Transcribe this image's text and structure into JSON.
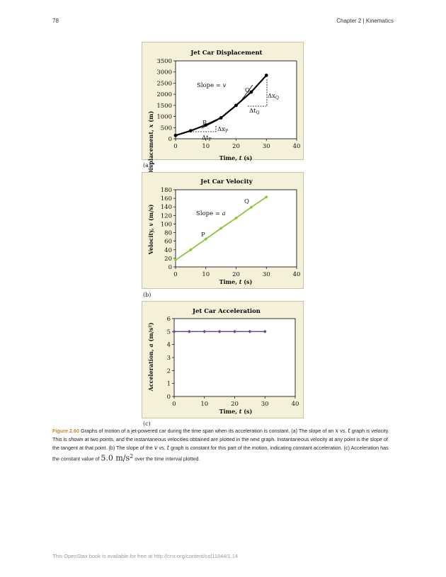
{
  "header": {
    "page_number": "78",
    "chapter": "Chapter 2 | Kinematics"
  },
  "figures": [
    {
      "panel_label": "(a)",
      "chart_data": {
        "type": "line",
        "title": "Jet Car Displacement",
        "xlabel_prefix": "Time, ",
        "xlabel_var": "t",
        "xlabel_unit": " (s)",
        "ylabel_prefix": "Displacement, ",
        "ylabel_var": "x",
        "ylabel_unit": " (m)",
        "xlim": [
          0,
          40
        ],
        "ylim": [
          0,
          3500
        ],
        "xticks": [
          0,
          10,
          20,
          30,
          40
        ],
        "yticks": [
          0,
          500,
          1000,
          1500,
          2000,
          2500,
          3000,
          3500
        ],
        "grid": false,
        "color": "#000000",
        "x": [
          0,
          5,
          10,
          15,
          20,
          25,
          30
        ],
        "y": [
          150,
          360,
          620,
          940,
          1500,
          2100,
          2850
        ],
        "annotations": {
          "slope": "Slope = ",
          "slope_var": "v",
          "p": "P",
          "q": "Q",
          "dxp": "Δx",
          "dxp_sub": "P",
          "dtp": "Δt",
          "dtp_sub": "P",
          "dxq": "Δx",
          "dxq_sub": "Q",
          "dtq": "Δt",
          "dtq_sub": "Q"
        }
      }
    },
    {
      "panel_label": "(b)",
      "chart_data": {
        "type": "line",
        "title": "Jet Car Velocity",
        "xlabel_prefix": "Time, ",
        "xlabel_var": "t",
        "xlabel_unit": " (s)",
        "ylabel_prefix": "Velocity, ",
        "ylabel_var": "v",
        "ylabel_unit": " (m/s)",
        "xlim": [
          0,
          40
        ],
        "ylim": [
          0,
          180
        ],
        "xticks": [
          0,
          10,
          20,
          30,
          40
        ],
        "yticks": [
          0,
          20,
          40,
          60,
          80,
          100,
          120,
          140,
          160,
          180
        ],
        "grid": false,
        "color": "#8cc63f",
        "x": [
          0,
          5,
          10,
          15,
          20,
          25,
          30
        ],
        "y": [
          16,
          40,
          65,
          90,
          114,
          139,
          163
        ],
        "annotations": {
          "slope": "Slope = ",
          "slope_var": "a",
          "p": "P",
          "q": "Q"
        }
      }
    },
    {
      "panel_label": "(c)",
      "chart_data": {
        "type": "line",
        "title": "Jet Car Acceleration",
        "xlabel_prefix": "Time, ",
        "xlabel_var": "t",
        "xlabel_unit": " (s)",
        "ylabel_prefix": "Acceleration, ",
        "ylabel_var": "a",
        "ylabel_unit": " (m/s²)",
        "xlim": [
          0,
          40
        ],
        "ylim": [
          0,
          6
        ],
        "xticks": [
          0,
          10,
          20,
          30,
          40
        ],
        "yticks": [
          0,
          1,
          2,
          3,
          4,
          5,
          6
        ],
        "grid": false,
        "color": "#6b3fa0",
        "x": [
          0,
          5,
          10,
          15,
          20,
          25,
          30
        ],
        "y": [
          5,
          5,
          5,
          5,
          5,
          5,
          5
        ]
      }
    }
  ],
  "caption": {
    "label": "Figure 2.60",
    "t1": " Graphs of motion of a jet-powered car during the time span when its acceleration is constant. (a) The slope of an ",
    "m1": "x",
    "vs1": " vs. ",
    "m2": "t",
    "t2": " graph is velocity. This is shown at two points, and the instantaneous velocities obtained are plotted in the next graph. Instantaneous velocity at any point is the slope of the tangent at that point. (b) The slope of the ",
    "m3": "v",
    "vs2": " vs. ",
    "m4": "t",
    "t3": " graph is constant for this part of the motion, indicating constant acceleration. (c) Acceleration has the constant value of ",
    "value": "5.0 m/s",
    "exp": "2",
    "t4": " over the time interval plotted."
  },
  "footer": "This OpenStax book is available for free at http://cnx.org/content/col11844/1.14"
}
